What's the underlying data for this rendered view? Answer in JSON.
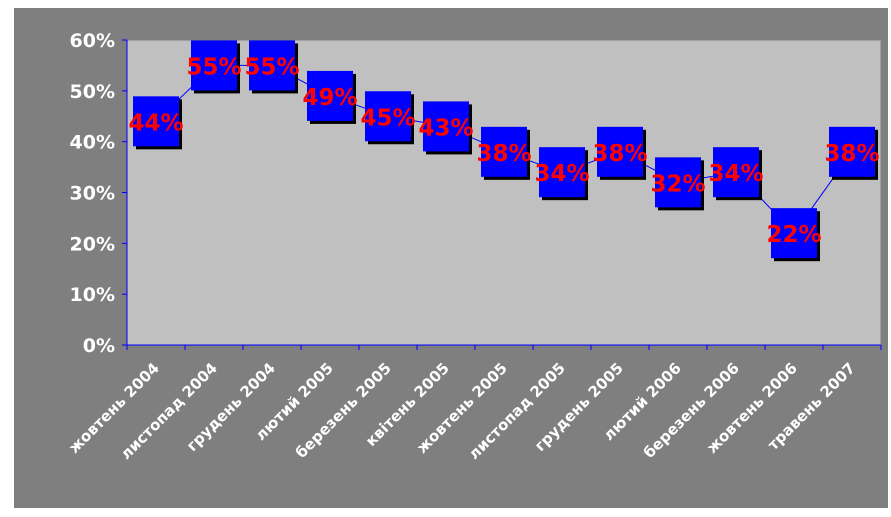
{
  "chart_data": {
    "type": "line",
    "title": "",
    "xlabel": "",
    "ylabel": "",
    "categories": [
      "жовтень 2004",
      "листопад 2004",
      "грудень 2004",
      "лютий 2005",
      "березень 2005",
      "квітень 2005",
      "жовтень 2005",
      "листопад 2005",
      "грудень 2005",
      "лютий 2006",
      "березень 2006",
      "жовтень 2006",
      "травень 2007"
    ],
    "values": [
      44,
      55,
      55,
      49,
      45,
      43,
      38,
      34,
      38,
      32,
      34,
      22,
      38
    ],
    "data_labels": [
      "44%",
      "55%",
      "55%",
      "49%",
      "45%",
      "43%",
      "38%",
      "34%",
      "38%",
      "32%",
      "34%",
      "22%",
      "38%"
    ],
    "y_ticks": [
      "0%",
      "10%",
      "20%",
      "30%",
      "40%",
      "50%",
      "60%"
    ],
    "ylim": [
      0,
      60
    ],
    "grid": false,
    "legend": "none",
    "colors": {
      "background": "#808080",
      "plot_area": "#c0c0c0",
      "marker": "#0000ff",
      "line": "#0000ff",
      "data_label": "#ff0000",
      "axis_text": "#ffffff"
    }
  }
}
